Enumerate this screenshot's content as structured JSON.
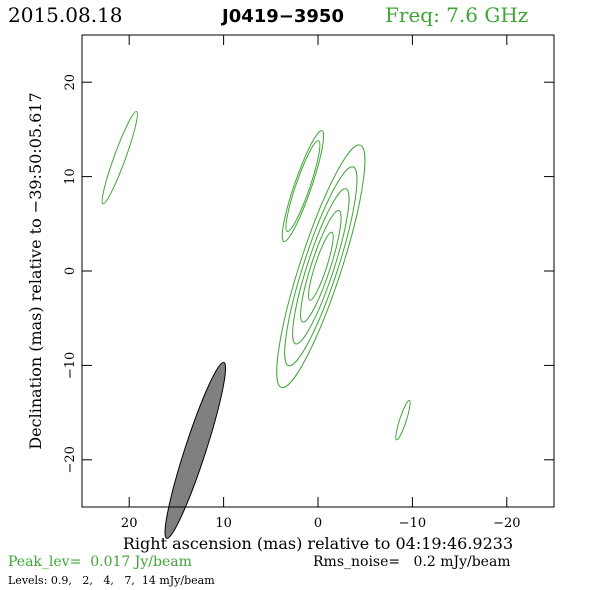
{
  "header": {
    "date": "2015.08.18",
    "source": "J0419−3950",
    "freq": "Freq: 7.6 GHz"
  },
  "footer": {
    "peak": "Peak_lev=  0.017 Jy/beam",
    "rms": "Rms_noise=   0.2 mJy/beam",
    "levels": "Levels: 0.9,   2,   4,   7,  14 mJy/beam"
  },
  "colors": {
    "contour": "#3fa535",
    "beam": "#808080",
    "axis": "#000000",
    "header_green": "#3fa535"
  },
  "chart_data": {
    "type": "contour",
    "xlabel": "Right ascension (mas) relative to 04:19:46.9233",
    "ylabel": "Declination (mas) relative to −39:50:05.617",
    "xlim": [
      25,
      -25
    ],
    "ylim": [
      -25,
      25
    ],
    "x_ticks": [
      {
        "value": 20,
        "label": "20"
      },
      {
        "value": 10,
        "label": "10"
      },
      {
        "value": 0,
        "label": "0"
      },
      {
        "value": -10,
        "label": "−10"
      },
      {
        "value": -20,
        "label": "−20"
      }
    ],
    "y_ticks": [
      {
        "value": 20,
        "label": "20"
      },
      {
        "value": 10,
        "label": "10"
      },
      {
        "value": 0,
        "label": "0"
      },
      {
        "value": -10,
        "label": "−10"
      },
      {
        "value": -20,
        "label": "−20"
      }
    ],
    "contour_levels_mJy": [
      0.9,
      2,
      4,
      7,
      14
    ],
    "components": [
      {
        "x": 21,
        "y": 12,
        "a": 5.2,
        "b": 0.6,
        "pa": 20,
        "levels": 1
      },
      {
        "x": 1.6,
        "y": 9,
        "a": 6.2,
        "b": 0.9,
        "pa": 19,
        "levels": 2
      },
      {
        "x": -0.3,
        "y": 0.5,
        "a": 13.5,
        "b": 2.2,
        "pa": 18,
        "levels": 5
      },
      {
        "x": -9,
        "y": -15.8,
        "a": 2.2,
        "b": 0.35,
        "pa": 18,
        "levels": 1
      }
    ],
    "beam": {
      "x": 13,
      "y": -19,
      "major": 9.8,
      "minor": 1.1,
      "pa": 18
    }
  }
}
